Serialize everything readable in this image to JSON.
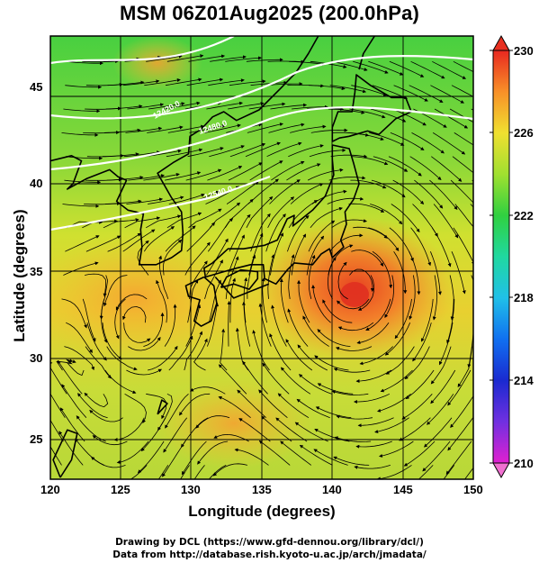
{
  "title": "MSM 06Z01Aug2025 (200.0hPa)",
  "xaxis": {
    "label": "Longitude (degrees)",
    "ticks": [
      "120",
      "125",
      "130",
      "135",
      "140",
      "145",
      "150"
    ],
    "range": [
      120,
      150
    ]
  },
  "yaxis": {
    "label": "Latitude  (degrees)",
    "ticks": [
      "25",
      "30",
      "35",
      "40",
      "45"
    ],
    "range": [
      22.4,
      47.6
    ]
  },
  "colorbar": {
    "ticks": [
      "230",
      "226",
      "222",
      "218",
      "214",
      "210"
    ],
    "range": [
      210,
      230
    ],
    "colors": [
      "#e020d0",
      "#7030e0",
      "#1a2ad0",
      "#1070f0",
      "#20c0e8",
      "#20d8a0",
      "#30d040",
      "#80e030",
      "#d8e830",
      "#f8c030",
      "#f87828",
      "#e83020"
    ]
  },
  "contours": [
    {
      "label": "12420.0"
    },
    {
      "label": "12480.0"
    },
    {
      "label": "12540.0"
    }
  ],
  "features": {
    "anticyclone_center": {
      "lon": 141.6,
      "lat": 33.8,
      "value": 229
    },
    "cyclone_center": {
      "lon": 126.2,
      "lat": 31.2
    }
  },
  "credits": [
    "Drawing by DCL (https://www.gfd-dennou.org/library/dcl/)",
    "Data from http://database.rish.kyoto-u.ac.jp/arch/jmadata/"
  ]
}
